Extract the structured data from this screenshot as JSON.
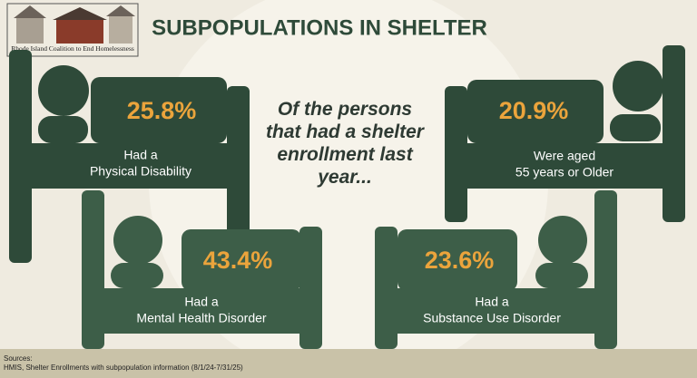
{
  "logo": {
    "org": "Rhode Island Coalition to End Homelessness"
  },
  "header": {
    "title": "SUBPOPULATIONS IN SHELTER"
  },
  "intro": "Of the persons that had a shelter enrollment last year...",
  "stats": [
    {
      "value": "25.8%",
      "label_lines": [
        "Had a",
        "Physical Disability"
      ]
    },
    {
      "value": "20.9%",
      "label_lines": [
        "Were aged",
        "55 years or Older"
      ]
    },
    {
      "value": "43.4%",
      "label_lines": [
        "Had a",
        "Mental Health Disorder"
      ]
    },
    {
      "value": "23.6%",
      "label_lines": [
        "Had a",
        "Substance Use Disorder"
      ]
    }
  ],
  "footer": {
    "heading": "Sources:",
    "source": "HMIS, Shelter Enrollments with subpopulation information (8/1/24-7/31/25)"
  }
}
